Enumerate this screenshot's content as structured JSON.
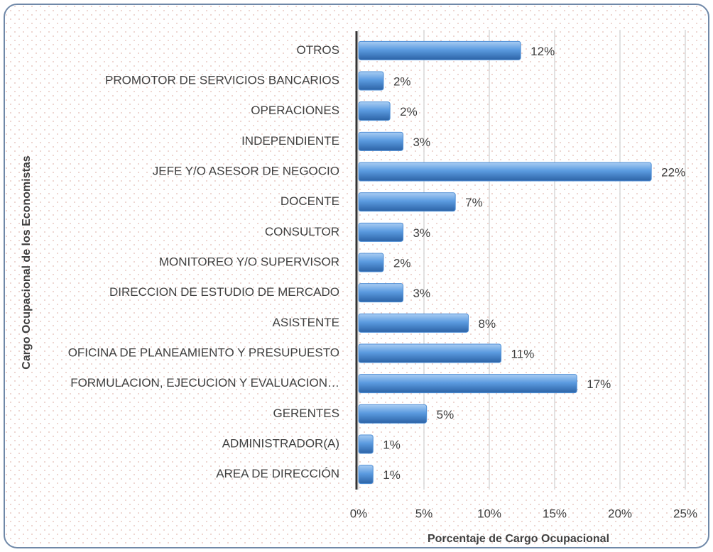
{
  "chart_data": {
    "type": "hbar",
    "x_label": "Porcentaje de Cargo Ocupacional",
    "y_label": "Cargo Ocupacional de los Economistas",
    "categories": [
      "OTROS",
      "PROMOTOR DE SERVICIOS BANCARIOS",
      "OPERACIONES",
      "INDEPENDIENTE",
      "JEFE Y/O ASESOR DE NEGOCIO",
      "DOCENTE",
      "CONSULTOR",
      "MONITOREO Y/O SUPERVISOR",
      "DIRECCION DE ESTUDIO DE MERCADO",
      "ASISTENTE",
      "OFICINA DE PLANEAMIENTO Y PRESUPUESTO",
      "FORMULACION, EJECUCION Y EVALUACION…",
      "GERENTES",
      "ADMINISTRADOR(A)",
      "AREA DE DIRECCIÓN"
    ],
    "values": [
      12.4,
      1.9,
      2.4,
      3.4,
      22.4,
      7.4,
      3.4,
      1.9,
      3.4,
      8.4,
      10.9,
      16.7,
      5.2,
      1.1,
      1.1
    ],
    "value_labels": [
      "12%",
      "2%",
      "2%",
      "3%",
      "22%",
      "7%",
      "3%",
      "2%",
      "3%",
      "8%",
      "11%",
      "17%",
      "5%",
      "1%",
      "1%"
    ],
    "color": "#4f8fd6",
    "xlim": [
      0,
      25
    ],
    "xticks": [
      {
        "value": 0,
        "label": "0%"
      },
      {
        "value": 5,
        "label": "5%"
      },
      {
        "value": 10,
        "label": "10%"
      },
      {
        "value": 15,
        "label": "15%"
      },
      {
        "value": 20,
        "label": "20%"
      },
      {
        "value": 25,
        "label": "25%"
      }
    ],
    "grid": true
  }
}
